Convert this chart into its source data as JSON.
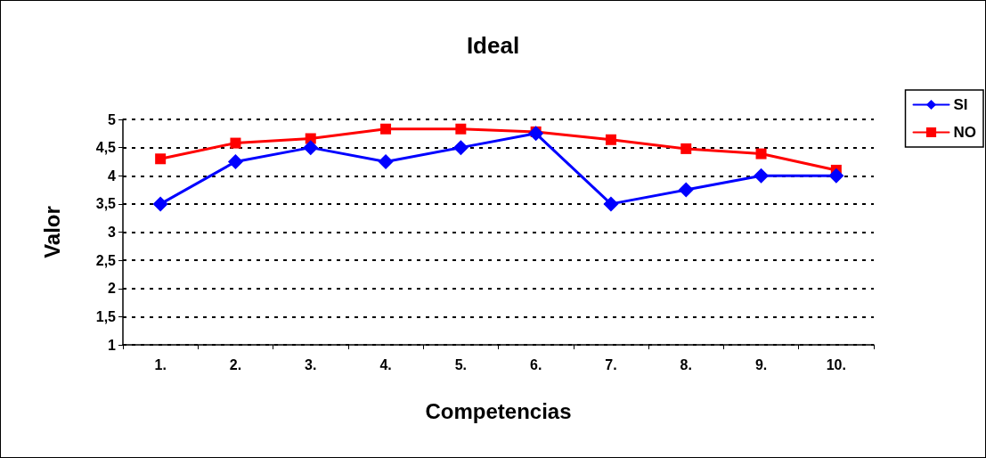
{
  "chart_data": {
    "type": "line",
    "title": "Ideal",
    "xlabel": "Competencias",
    "ylabel": "Valor",
    "categories": [
      "1.",
      "2.",
      "3.",
      "4.",
      "5.",
      "6.",
      "7.",
      "8.",
      "9.",
      "10."
    ],
    "series": [
      {
        "name": "SI",
        "color": "#0000ff",
        "marker": "diamond",
        "values": [
          3.5,
          4.25,
          4.5,
          4.25,
          4.5,
          4.75,
          3.5,
          3.75,
          4,
          4
        ]
      },
      {
        "name": "NO",
        "color": "#ff0000",
        "marker": "square",
        "values": [
          4.3,
          4.58,
          4.66,
          4.83,
          4.83,
          4.78,
          4.64,
          4.48,
          4.39,
          4.1
        ]
      }
    ],
    "ylim": [
      1,
      5
    ],
    "yticks": [
      1,
      {
        "value": 1.5,
        "label": "1,5"
      },
      2,
      {
        "value": 2.5,
        "label": "2,5"
      },
      3,
      {
        "value": 3.5,
        "label": "3,5"
      },
      4,
      {
        "value": 4.5,
        "label": "4,5"
      },
      5
    ],
    "grid": "y",
    "legend": "top right",
    "line_style": "solid"
  }
}
